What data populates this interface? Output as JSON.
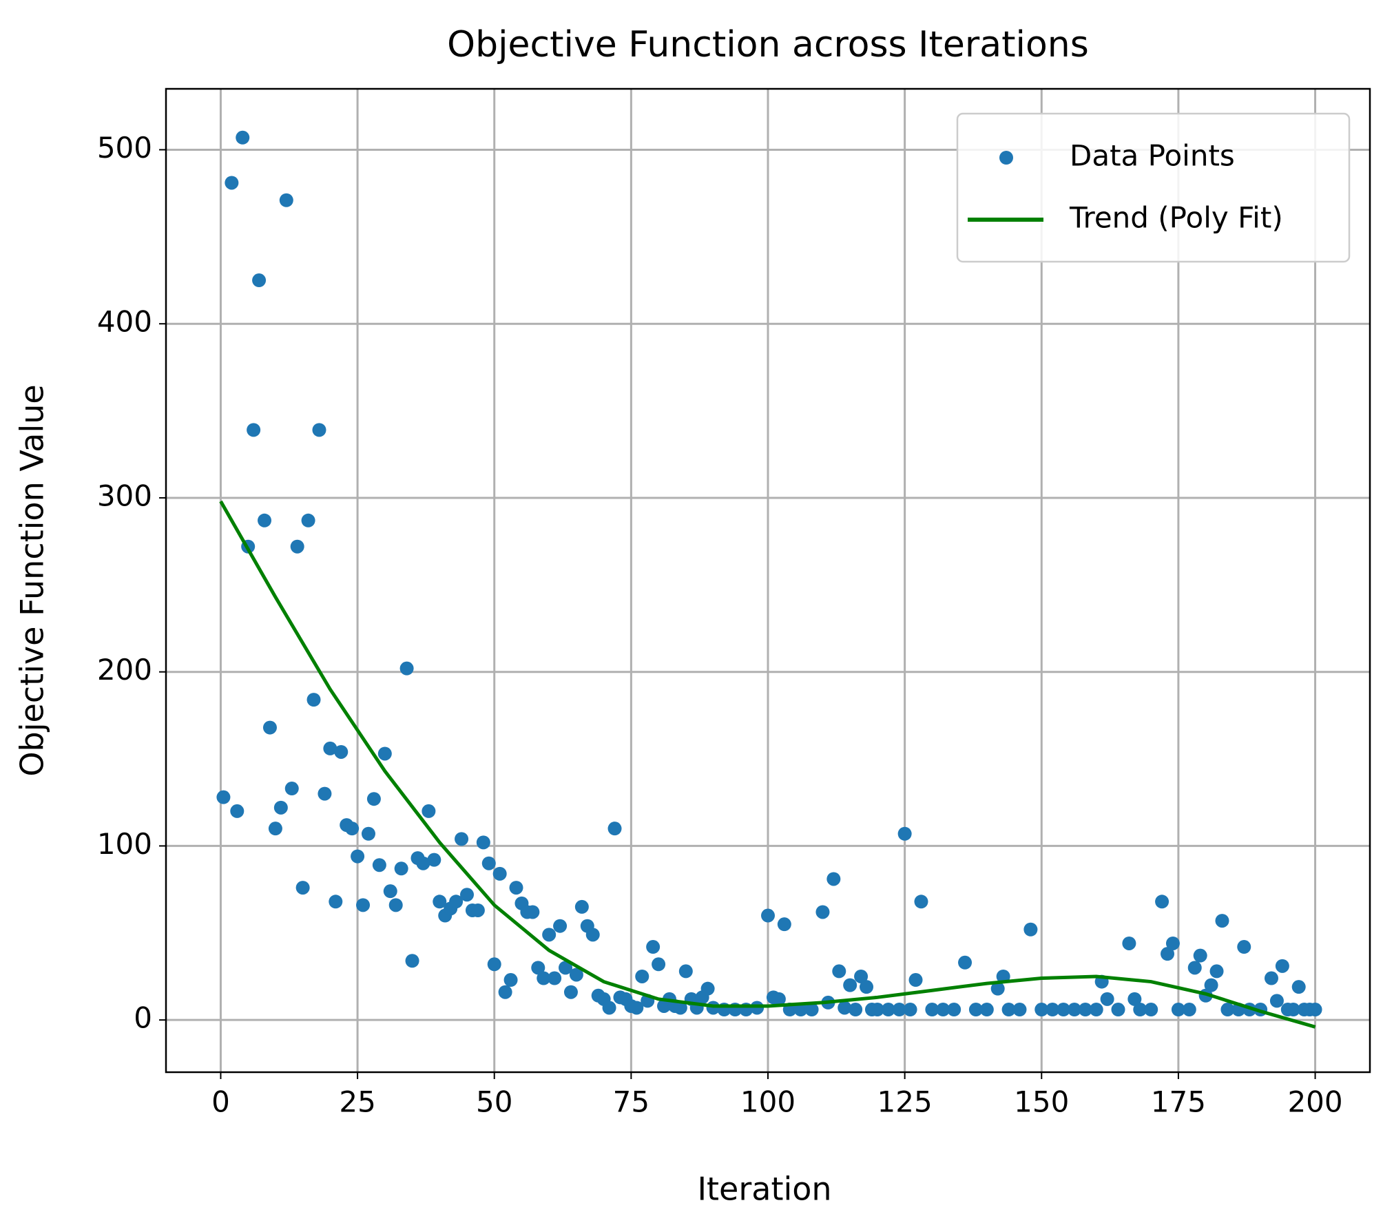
{
  "chart_data": {
    "type": "scatter",
    "title": "Objective Function across Iterations",
    "x_label": "Iteration",
    "y_label": "Objective Function Value",
    "xlim": [
      -10,
      210
    ],
    "ylim": [
      -30,
      535
    ],
    "xticks": [
      0,
      25,
      50,
      75,
      100,
      125,
      150,
      175,
      200
    ],
    "yticks": [
      0,
      100,
      200,
      300,
      400,
      500
    ],
    "grid": true,
    "legend": "upper right",
    "series": [
      {
        "name": "Data Points",
        "type": "scatter",
        "color": "#1f77b4",
        "x": [
          0.5,
          2,
          3,
          4,
          5,
          6,
          7,
          8,
          9,
          10,
          11,
          12,
          13,
          14,
          15,
          16,
          17,
          18,
          19,
          20,
          21,
          22,
          23,
          24,
          25,
          26,
          27,
          28,
          29,
          30,
          31,
          32,
          33,
          34,
          35,
          36,
          37,
          38,
          39,
          40,
          41,
          42,
          43,
          44,
          45,
          46,
          47,
          48,
          49,
          50,
          51,
          52,
          53,
          54,
          55,
          56,
          57,
          58,
          59,
          60,
          61,
          62,
          63,
          64,
          65,
          66,
          67,
          68,
          69,
          70,
          71,
          72,
          73,
          74,
          75,
          76,
          77,
          78,
          79,
          80,
          81,
          82,
          83,
          84,
          85,
          86,
          87,
          88,
          89,
          90,
          92,
          94,
          96,
          98,
          100,
          101,
          102,
          103,
          104,
          106,
          108,
          110,
          111,
          112,
          113,
          114,
          115,
          116,
          117,
          118,
          119,
          120,
          122,
          124,
          125,
          126,
          127,
          128,
          130,
          132,
          134,
          136,
          138,
          140,
          142,
          143,
          144,
          146,
          148,
          150,
          152,
          154,
          156,
          158,
          160,
          161,
          162,
          164,
          166,
          167,
          168,
          170,
          172,
          173,
          174,
          175,
          177,
          178,
          179,
          180,
          181,
          182,
          183,
          184,
          186,
          187,
          188,
          190,
          192,
          193,
          194,
          195,
          196,
          197,
          198,
          199,
          200
        ],
        "values": [
          128,
          481,
          120,
          507,
          272,
          339,
          425,
          287,
          168,
          110,
          122,
          471,
          133,
          272,
          76,
          287,
          184,
          339,
          130,
          156,
          68,
          154,
          112,
          110,
          94,
          66,
          107,
          127,
          89,
          153,
          74,
          66,
          87,
          202,
          34,
          93,
          90,
          120,
          92,
          68,
          60,
          64,
          68,
          104,
          72,
          63,
          63,
          102,
          90,
          32,
          84,
          16,
          23,
          76,
          67,
          62,
          62,
          30,
          24,
          49,
          24,
          54,
          30,
          16,
          26,
          65,
          54,
          49,
          14,
          12,
          7,
          110,
          13,
          12,
          8,
          7,
          25,
          11,
          42,
          32,
          8,
          12,
          8,
          7,
          28,
          12,
          7,
          13,
          18,
          7,
          6,
          6,
          6,
          7,
          60,
          13,
          12,
          55,
          6,
          6,
          6,
          62,
          10,
          81,
          28,
          7,
          20,
          6,
          25,
          19,
          6,
          6,
          6,
          6,
          107,
          6,
          23,
          68,
          6,
          6,
          6,
          33,
          6,
          6,
          18,
          25,
          6,
          6,
          52,
          6,
          6,
          6,
          6,
          6,
          6,
          22,
          12,
          6,
          44,
          12,
          6,
          6,
          68,
          38,
          44,
          6,
          6,
          30,
          37,
          14,
          20,
          28,
          57,
          6,
          6,
          42,
          6,
          6,
          24,
          11,
          31,
          6,
          6,
          19,
          6,
          6,
          6
        ]
      },
      {
        "name": "Trend (Poly Fit)",
        "type": "line",
        "color": "#008000",
        "x": [
          0,
          10,
          20,
          30,
          40,
          50,
          60,
          70,
          80,
          90,
          100,
          110,
          120,
          130,
          140,
          150,
          160,
          170,
          180,
          190,
          200
        ],
        "values": [
          298,
          243,
          190,
          143,
          102,
          66,
          40,
          22,
          12,
          8,
          8,
          10,
          13,
          17,
          21,
          24,
          25,
          22,
          15,
          5,
          -4
        ]
      }
    ]
  }
}
